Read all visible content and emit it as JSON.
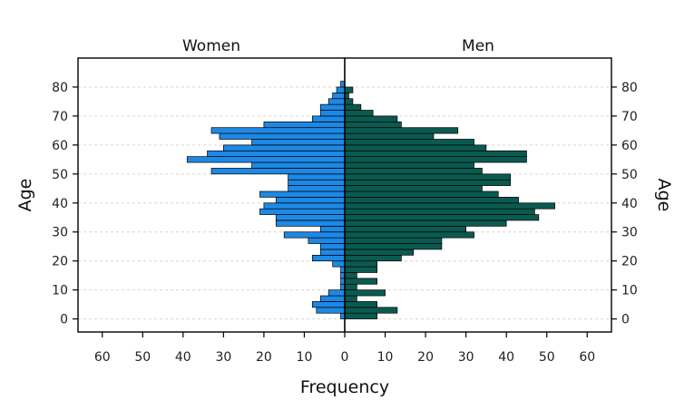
{
  "chart_data": {
    "type": "bar",
    "orientation": "horizontal-population-pyramid",
    "group_labels": [
      "Women",
      "Men"
    ],
    "xlabel": "Frequency",
    "ylabel_left": "Age",
    "ylabel_right": "Age",
    "xlim": [
      0,
      66
    ],
    "ylim": [
      -4.5,
      90
    ],
    "x_ticks": [
      0,
      10,
      20,
      30,
      40,
      50,
      60
    ],
    "y_ticks": [
      0,
      10,
      20,
      30,
      40,
      50,
      60,
      70,
      80
    ],
    "x_tick_labels": [
      "0",
      "10",
      "20",
      "30",
      "40",
      "50",
      "60"
    ],
    "y_tick_labels": [
      "0",
      "10",
      "20",
      "30",
      "40",
      "50",
      "60",
      "70",
      "80"
    ],
    "grid": "horizontal dashed",
    "bin_width": 2,
    "bin_starts": [
      0,
      2,
      4,
      6,
      8,
      10,
      12,
      14,
      16,
      18,
      20,
      22,
      24,
      26,
      28,
      30,
      32,
      34,
      36,
      38,
      40,
      42,
      44,
      46,
      48,
      50,
      52,
      54,
      56,
      58,
      60,
      62,
      64,
      66,
      68,
      70,
      72,
      74,
      76,
      78,
      80,
      82
    ],
    "series": [
      {
        "name": "Women",
        "color": "#1e88e5",
        "values": [
          1,
          7,
          8,
          6,
          4,
          1,
          1,
          1,
          1,
          3,
          8,
          6,
          6,
          9,
          15,
          6,
          17,
          17,
          21,
          20,
          17,
          21,
          14,
          14,
          14,
          33,
          23,
          39,
          34,
          30,
          23,
          31,
          33,
          20,
          8,
          6,
          6,
          4,
          3,
          2,
          1,
          0
        ]
      },
      {
        "name": "Men",
        "color": "#0b5a50",
        "values": [
          8,
          13,
          8,
          3,
          10,
          3,
          8,
          3,
          8,
          8,
          14,
          17,
          24,
          24,
          32,
          30,
          40,
          48,
          47,
          52,
          43,
          38,
          34,
          41,
          41,
          34,
          32,
          45,
          45,
          35,
          32,
          22,
          28,
          14,
          13,
          7,
          4,
          2,
          1,
          2,
          0,
          0
        ]
      }
    ]
  }
}
